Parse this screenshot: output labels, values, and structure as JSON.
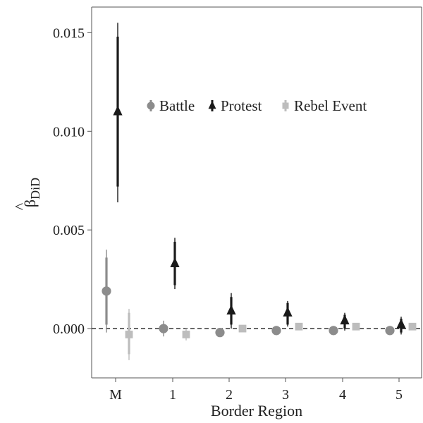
{
  "chart_data": {
    "type": "scatter",
    "title": "",
    "xlabel": "Border Region",
    "ylabel": {
      "hat": "^",
      "symbol": "β",
      "subscript": "DiD"
    },
    "categories": [
      "M",
      "1",
      "2",
      "3",
      "4",
      "5"
    ],
    "ylim": [
      -0.0025,
      0.0163
    ],
    "yticks": [
      0.0,
      0.005,
      0.01,
      0.015
    ],
    "ytick_labels": [
      "0.000",
      "0.005",
      "0.010",
      "0.015"
    ],
    "reference_line": {
      "y": 0,
      "style": "dashed"
    },
    "grid": false,
    "legend": {
      "placement": "top-right-inside"
    },
    "series": [
      {
        "name": "Battle",
        "marker": "circle",
        "color": "#8c8c8c",
        "points": [
          {
            "x": "M",
            "y": 0.0019,
            "ci_inner": [
              0.0002,
              0.0036
            ],
            "ci_outer": [
              -0.0002,
              0.004
            ]
          },
          {
            "x": "1",
            "y": 0.0,
            "ci_inner": [
              -0.0002,
              0.0002
            ],
            "ci_outer": [
              -0.0004,
              0.0004
            ]
          },
          {
            "x": "2",
            "y": -0.0002,
            "ci_inner": [
              -0.0003,
              -0.0001
            ],
            "ci_outer": [
              -0.0004,
              0.0
            ]
          },
          {
            "x": "3",
            "y": -0.0001,
            "ci_inner": [
              -0.0002,
              0.0
            ],
            "ci_outer": [
              -0.0003,
              0.0001
            ]
          },
          {
            "x": "4",
            "y": -0.0001,
            "ci_inner": [
              -0.0002,
              0.0
            ],
            "ci_outer": [
              -0.0003,
              0.0001
            ]
          },
          {
            "x": "5",
            "y": -0.0001,
            "ci_inner": [
              -0.0002,
              0.0
            ],
            "ci_outer": [
              -0.0002,
              0.0
            ]
          }
        ]
      },
      {
        "name": "Protest",
        "marker": "triangle",
        "color": "#1a1a1a",
        "points": [
          {
            "x": "M",
            "y": 0.011,
            "ci_inner": [
              0.0072,
              0.0148
            ],
            "ci_outer": [
              0.0064,
              0.0155
            ]
          },
          {
            "x": "1",
            "y": 0.0033,
            "ci_inner": [
              0.0022,
              0.0044
            ],
            "ci_outer": [
              0.002,
              0.0046
            ]
          },
          {
            "x": "2",
            "y": 0.0009,
            "ci_inner": [
              0.0002,
              0.0016
            ],
            "ci_outer": [
              0.0,
              0.0018
            ]
          },
          {
            "x": "3",
            "y": 0.0008,
            "ci_inner": [
              0.0002,
              0.0013
            ],
            "ci_outer": [
              0.0001,
              0.0014
            ]
          },
          {
            "x": "4",
            "y": 0.0004,
            "ci_inner": [
              0.0,
              0.0007
            ],
            "ci_outer": [
              -0.0001,
              0.0008
            ]
          },
          {
            "x": "5",
            "y": 0.0002,
            "ci_inner": [
              -0.0002,
              0.0005
            ],
            "ci_outer": [
              -0.0003,
              0.0006
            ]
          }
        ]
      },
      {
        "name": "Rebel Event",
        "marker": "square",
        "color": "#bdbdbd",
        "points": [
          {
            "x": "M",
            "y": -0.0003,
            "ci_inner": [
              -0.0013,
              0.0008
            ],
            "ci_outer": [
              -0.0016,
              0.001
            ]
          },
          {
            "x": "1",
            "y": -0.0003,
            "ci_inner": [
              -0.0005,
              -0.0001
            ],
            "ci_outer": [
              -0.0006,
              0.0
            ]
          },
          {
            "x": "2",
            "y": 0.0,
            "ci_inner": [
              -0.0001,
              0.0001
            ],
            "ci_outer": [
              -0.0001,
              0.0001
            ]
          },
          {
            "x": "3",
            "y": 0.0001,
            "ci_inner": [
              0.0,
              0.0002
            ],
            "ci_outer": [
              0.0,
              0.0002
            ]
          },
          {
            "x": "4",
            "y": 0.0001,
            "ci_inner": [
              0.0,
              0.0002
            ],
            "ci_outer": [
              0.0,
              0.0002
            ]
          },
          {
            "x": "5",
            "y": 0.0001,
            "ci_inner": [
              0.0,
              0.0002
            ],
            "ci_outer": [
              0.0,
              0.0002
            ]
          }
        ]
      }
    ]
  }
}
